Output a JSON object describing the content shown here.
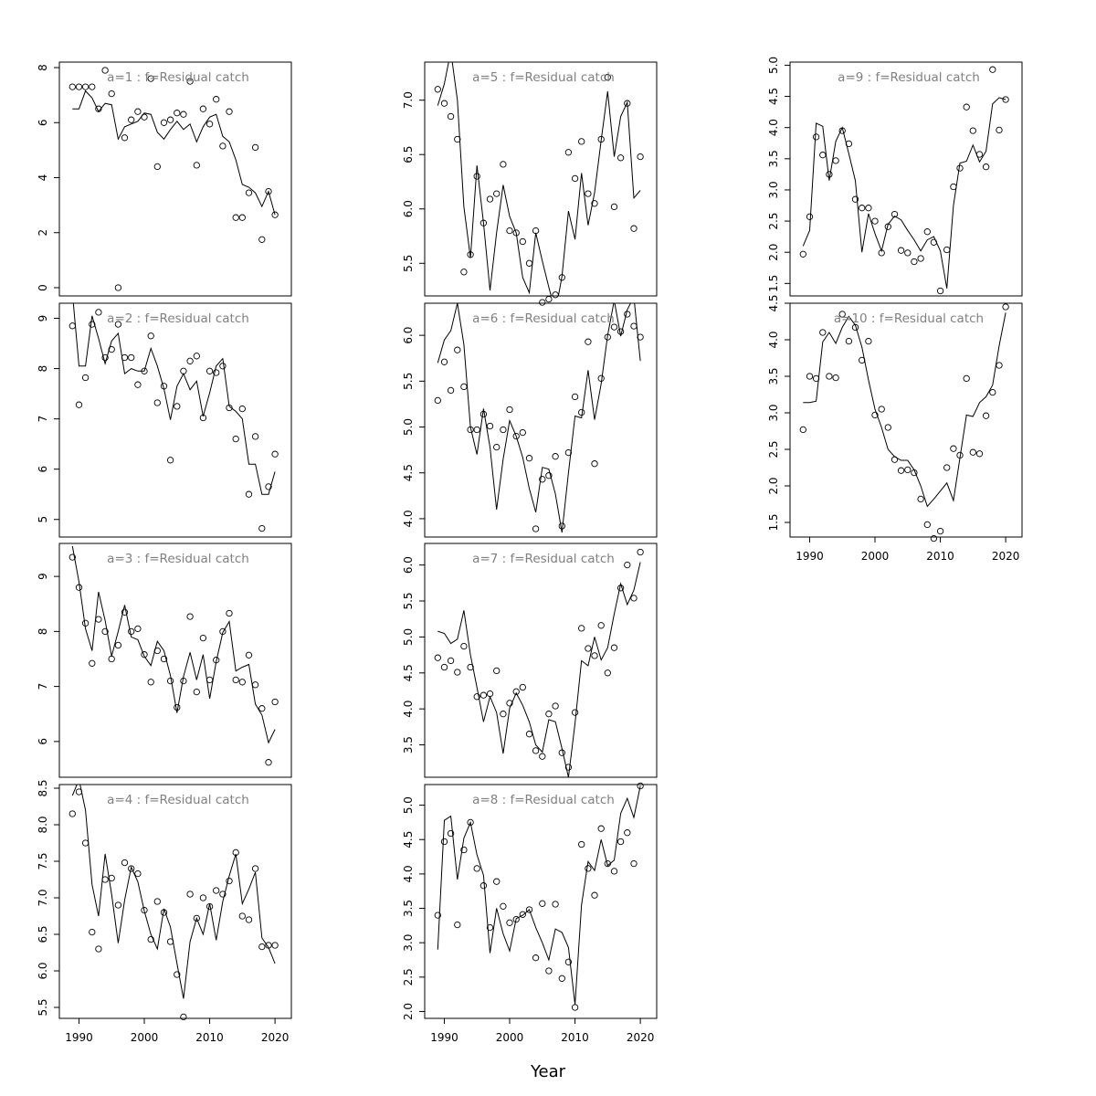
{
  "chart_data": {
    "type": "scatter",
    "layout": "3 columns x 4 rows, shared x axis by column",
    "xlabel": "Year",
    "x_ticks": [
      1990,
      2000,
      2010,
      2020
    ],
    "xlim": [
      1987,
      2022.5
    ],
    "years": [
      1989,
      1990,
      1991,
      1992,
      1993,
      1994,
      1995,
      1996,
      1997,
      1998,
      1999,
      2000,
      2001,
      2002,
      2003,
      2004,
      2005,
      2006,
      2007,
      2008,
      2009,
      2010,
      2011,
      2012,
      2013,
      2014,
      2015,
      2016,
      2017,
      2018,
      2019,
      2020
    ],
    "panels": [
      {
        "title": "a=1  :  f=Residual catch",
        "col": 0,
        "row": 0,
        "ylim": [
          -0.3,
          8.2
        ],
        "y_ticks": [
          0,
          2,
          4,
          6,
          8
        ],
        "show_x_axis": false,
        "points": [
          7.3,
          7.3,
          7.3,
          7.3,
          6.5,
          7.9,
          7.05,
          0.0,
          5.45,
          6.1,
          6.4,
          6.2,
          7.6,
          4.4,
          6.0,
          6.1,
          6.35,
          6.3,
          7.5,
          4.45,
          6.5,
          5.95,
          6.85,
          5.15,
          6.4,
          2.55,
          2.55,
          3.45,
          5.1,
          1.75,
          3.5,
          2.65
        ],
        "line": [
          6.5,
          6.5,
          7.15,
          6.9,
          6.4,
          6.7,
          6.65,
          5.4,
          5.85,
          5.95,
          6.05,
          6.35,
          6.3,
          5.65,
          5.4,
          5.75,
          6.05,
          5.75,
          5.95,
          5.3,
          5.85,
          6.2,
          6.3,
          5.5,
          5.3,
          4.65,
          3.75,
          3.65,
          3.45,
          2.95,
          3.5,
          2.65
        ]
      },
      {
        "title": "a=2  :  f=Residual catch",
        "col": 0,
        "row": 1,
        "ylim": [
          4.65,
          9.3
        ],
        "y_ticks": [
          5,
          6,
          7,
          8,
          9
        ],
        "show_x_axis": false,
        "points": [
          8.85,
          7.28,
          7.82,
          8.88,
          9.12,
          8.22,
          8.38,
          8.88,
          8.22,
          8.22,
          7.68,
          7.95,
          8.65,
          7.32,
          7.65,
          6.18,
          7.25,
          7.95,
          8.15,
          8.25,
          7.02,
          7.95,
          7.92,
          8.05,
          7.22,
          6.6,
          7.2,
          5.5,
          6.65,
          4.82,
          5.65,
          6.3
        ],
        "line": [
          9.5,
          8.05,
          8.05,
          9.05,
          8.6,
          8.1,
          8.55,
          8.7,
          7.9,
          8.0,
          7.95,
          7.95,
          8.4,
          8.05,
          7.6,
          6.98,
          7.65,
          7.9,
          7.58,
          7.75,
          7.05,
          7.52,
          8.05,
          8.2,
          7.25,
          7.15,
          7.0,
          6.1,
          6.1,
          5.5,
          5.5,
          5.95
        ]
      },
      {
        "title": "a=3  :  f=Residual catch",
        "col": 0,
        "row": 2,
        "ylim": [
          5.35,
          9.6
        ],
        "y_ticks": [
          6,
          7,
          8,
          9
        ],
        "show_x_axis": false,
        "points": [
          9.35,
          8.8,
          8.15,
          7.42,
          8.22,
          8.0,
          7.5,
          7.75,
          8.35,
          8.0,
          8.05,
          7.58,
          7.08,
          7.65,
          7.5,
          7.1,
          6.62,
          7.1,
          8.27,
          6.9,
          7.88,
          7.12,
          7.48,
          8.0,
          8.33,
          7.12,
          7.08,
          7.57,
          7.03,
          6.6,
          5.62,
          6.72
        ],
        "line": [
          9.55,
          8.9,
          8.05,
          7.65,
          8.72,
          8.2,
          7.55,
          8.0,
          8.48,
          7.9,
          7.85,
          7.55,
          7.38,
          7.82,
          7.65,
          7.2,
          6.52,
          7.18,
          7.62,
          7.12,
          7.58,
          6.78,
          7.45,
          7.98,
          8.18,
          7.28,
          7.35,
          7.4,
          6.68,
          6.48,
          5.98,
          6.22
        ]
      },
      {
        "title": "a=4  :  f=Residual catch",
        "col": 0,
        "row": 3,
        "ylim": [
          5.35,
          8.55
        ],
        "y_ticks": [
          5.5,
          6.0,
          6.5,
          7.0,
          7.5,
          8.0,
          8.5
        ],
        "show_x_axis": true,
        "points": [
          8.15,
          8.45,
          7.75,
          6.53,
          6.3,
          7.25,
          7.27,
          6.9,
          7.48,
          7.4,
          7.33,
          6.83,
          6.43,
          6.95,
          6.8,
          6.4,
          5.95,
          5.37,
          7.05,
          6.72,
          7.0,
          6.88,
          7.1,
          7.05,
          7.23,
          7.62,
          6.75,
          6.7,
          7.4,
          6.33,
          6.35,
          6.35
        ],
        "line": [
          8.4,
          8.62,
          8.2,
          7.18,
          6.75,
          7.6,
          7.05,
          6.38,
          6.97,
          7.42,
          7.22,
          6.82,
          6.5,
          6.3,
          6.85,
          6.6,
          6.1,
          5.62,
          6.4,
          6.72,
          6.5,
          6.92,
          6.42,
          6.95,
          7.3,
          7.6,
          6.92,
          7.12,
          7.35,
          6.45,
          6.32,
          6.1
        ]
      },
      {
        "title": "a=5  :  f=Residual catch",
        "col": 1,
        "row": 0,
        "ylim": [
          5.2,
          7.35
        ],
        "y_ticks": [
          5.5,
          6.0,
          6.5,
          7.0
        ],
        "show_x_axis": false,
        "points": [
          7.1,
          6.97,
          6.85,
          6.64,
          5.42,
          5.58,
          6.3,
          5.87,
          6.09,
          6.14,
          6.41,
          5.8,
          5.78,
          5.7,
          5.5,
          5.8,
          5.14,
          5.17,
          5.21,
          5.37,
          6.52,
          6.28,
          6.62,
          6.14,
          6.05,
          6.64,
          7.21,
          6.02,
          6.47,
          6.97,
          5.82,
          6.48
        ],
        "line": [
          6.95,
          7.15,
          7.45,
          7.0,
          6.02,
          5.55,
          6.4,
          5.87,
          5.25,
          5.78,
          6.22,
          5.93,
          5.78,
          5.37,
          5.23,
          5.78,
          5.52,
          5.28,
          5.05,
          5.38,
          5.98,
          5.72,
          6.33,
          5.85,
          6.15,
          6.63,
          7.08,
          6.48,
          6.85,
          6.98,
          6.1,
          6.17
        ]
      },
      {
        "title": "a=6  :  f=Residual catch",
        "col": 1,
        "row": 1,
        "ylim": [
          3.8,
          6.35
        ],
        "y_ticks": [
          4.0,
          4.5,
          5.0,
          5.5,
          6.0
        ],
        "show_x_axis": false,
        "points": [
          5.29,
          5.71,
          5.4,
          5.84,
          5.44,
          4.97,
          4.97,
          5.14,
          5.01,
          4.78,
          4.97,
          5.19,
          4.9,
          4.94,
          4.66,
          3.89,
          4.43,
          4.47,
          4.68,
          3.92,
          4.72,
          5.33,
          5.16,
          5.93,
          4.6,
          5.53,
          5.98,
          6.09,
          6.04,
          6.23,
          6.1,
          5.98
        ],
        "line": [
          5.7,
          5.95,
          6.05,
          6.35,
          5.9,
          5.0,
          4.7,
          5.2,
          4.78,
          4.1,
          4.65,
          5.07,
          4.9,
          4.67,
          4.33,
          4.07,
          4.56,
          4.54,
          4.27,
          3.85,
          4.5,
          5.12,
          5.1,
          5.62,
          5.08,
          5.47,
          6.0,
          6.38,
          5.99,
          6.28,
          6.42,
          5.72
        ]
      },
      {
        "title": "a=7  :  f=Residual catch",
        "col": 1,
        "row": 2,
        "ylim": [
          3.05,
          6.3
        ],
        "y_ticks": [
          3.5,
          4.0,
          4.5,
          5.0,
          5.5,
          6.0
        ],
        "show_x_axis": false,
        "points": [
          4.71,
          4.58,
          4.67,
          4.51,
          4.87,
          4.58,
          4.17,
          4.19,
          4.21,
          4.53,
          3.93,
          4.08,
          4.24,
          4.3,
          3.65,
          3.42,
          3.34,
          3.93,
          4.04,
          3.39,
          3.19,
          3.95,
          5.12,
          4.84,
          4.74,
          5.16,
          4.5,
          4.85,
          5.68,
          6.0,
          5.54,
          6.18
        ],
        "line": [
          5.08,
          5.05,
          4.91,
          4.97,
          5.37,
          4.75,
          4.3,
          3.82,
          4.17,
          3.95,
          3.38,
          4.01,
          4.22,
          4.05,
          3.82,
          3.5,
          3.4,
          3.85,
          3.82,
          3.45,
          3.05,
          3.8,
          4.67,
          4.6,
          5.0,
          4.68,
          4.85,
          5.32,
          5.74,
          5.45,
          5.65,
          6.04
        ]
      },
      {
        "title": "a=8  :  f=Residual catch",
        "col": 1,
        "row": 3,
        "ylim": [
          1.9,
          5.3
        ],
        "y_ticks": [
          2.0,
          2.5,
          3.0,
          3.5,
          4.0,
          4.5,
          5.0
        ],
        "show_x_axis": true,
        "points": [
          3.4,
          4.47,
          4.59,
          3.26,
          4.35,
          4.75,
          4.08,
          3.83,
          3.22,
          3.89,
          3.53,
          3.29,
          3.34,
          3.41,
          3.48,
          2.78,
          3.57,
          2.59,
          3.56,
          2.48,
          2.72,
          2.06,
          4.43,
          4.08,
          3.69,
          4.66,
          4.15,
          4.04,
          4.47,
          4.6,
          4.15,
          5.28
        ],
        "line": [
          2.9,
          4.78,
          4.84,
          3.92,
          4.52,
          4.75,
          4.28,
          3.98,
          2.85,
          3.5,
          3.13,
          2.88,
          3.35,
          3.4,
          3.48,
          3.22,
          3.0,
          2.75,
          3.2,
          3.15,
          2.93,
          2.1,
          3.55,
          4.18,
          4.05,
          4.5,
          4.12,
          4.2,
          4.88,
          5.1,
          4.82,
          5.28
        ]
      },
      {
        "title": "a=9  :  f=Residual catch",
        "col": 2,
        "row": 0,
        "ylim": [
          1.3,
          5.05
        ],
        "y_ticks": [
          1.5,
          2.0,
          2.5,
          3.0,
          3.5,
          4.0,
          4.5,
          5.0
        ],
        "show_x_axis": false,
        "points": [
          1.97,
          2.57,
          3.85,
          3.56,
          3.25,
          3.47,
          3.95,
          3.74,
          2.85,
          2.71,
          2.71,
          2.5,
          1.99,
          2.41,
          2.61,
          2.03,
          1.99,
          1.85,
          1.9,
          2.33,
          2.16,
          1.38,
          2.04,
          3.05,
          3.35,
          4.33,
          3.95,
          3.57,
          3.37,
          4.93,
          3.96,
          4.45
        ],
        "line": [
          2.1,
          2.35,
          4.07,
          4.02,
          3.15,
          3.78,
          4.0,
          3.58,
          3.15,
          2.0,
          2.62,
          2.3,
          2.02,
          2.45,
          2.58,
          2.52,
          2.35,
          2.2,
          2.02,
          2.2,
          2.25,
          2.02,
          1.42,
          2.75,
          3.43,
          3.46,
          3.72,
          3.45,
          3.62,
          4.38,
          4.48,
          4.45
        ]
      },
      {
        "title": "a=10  :  f=Residual catch",
        "col": 2,
        "row": 1,
        "ylim": [
          1.3,
          4.5
        ],
        "y_ticks": [
          1.5,
          2.0,
          2.5,
          3.0,
          3.5,
          4.0,
          4.5
        ],
        "show_x_axis": true,
        "points": [
          2.77,
          3.5,
          3.47,
          4.1,
          3.5,
          3.48,
          4.35,
          3.98,
          4.17,
          3.72,
          3.98,
          2.97,
          3.05,
          2.8,
          2.36,
          2.21,
          2.22,
          2.18,
          1.82,
          1.47,
          1.28,
          1.38,
          2.25,
          2.51,
          2.42,
          3.47,
          2.46,
          2.44,
          2.96,
          3.28,
          3.65,
          4.45
        ],
        "line": [
          3.14,
          3.14,
          3.16,
          3.97,
          4.1,
          3.95,
          4.17,
          4.32,
          4.2,
          3.9,
          3.45,
          3.05,
          2.8,
          2.5,
          2.4,
          2.35,
          2.35,
          2.22,
          2.0,
          1.72,
          1.82,
          1.93,
          2.04,
          1.8,
          2.38,
          2.97,
          2.95,
          3.14,
          3.22,
          3.38,
          3.92,
          4.37
        ]
      }
    ]
  }
}
